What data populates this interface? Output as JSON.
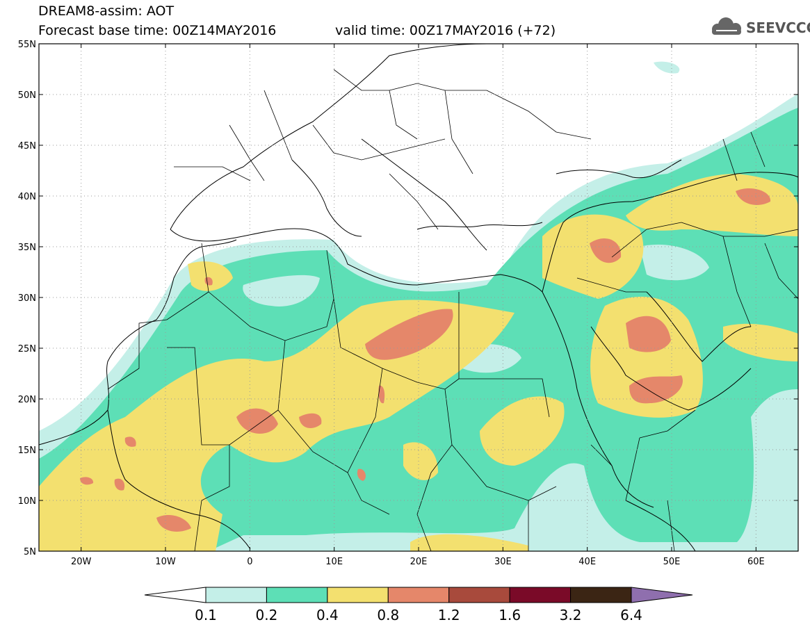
{
  "title": {
    "line1": "DREAM8-assim: AOT",
    "line2": "Forecast base time: 00Z14MAY2016",
    "valid": "valid time: 00Z17MAY2016 (+72)"
  },
  "logo": {
    "text": "SEEVCCC",
    "icon": "cloud-icon"
  },
  "map": {
    "lon_range": [
      -25,
      65
    ],
    "lat_range": [
      5,
      55
    ],
    "lat_ticks": [
      "55N",
      "50N",
      "45N",
      "40N",
      "35N",
      "30N",
      "25N",
      "20N",
      "15N",
      "10N",
      "5N"
    ],
    "lon_ticks": [
      "20W",
      "10W",
      "0",
      "10E",
      "20E",
      "30E",
      "40E",
      "50E",
      "60E"
    ],
    "grid": "dotted",
    "colors": {
      "0.1-0.2": "#c4efe8",
      "0.2-0.4": "#5ddfb6",
      "0.4-0.8": "#f3e06f",
      "0.8-1.2": "#e5876a",
      "1.2-1.6": "#a84a3c",
      "1.6-3.2": "#7a0a28",
      "3.2-6.4": "#3b2514",
      "above-6.4": "#8f6fae"
    }
  },
  "colorbar": {
    "labels": [
      "0.1",
      "0.2",
      "0.4",
      "0.8",
      "1.2",
      "1.6",
      "3.2",
      "6.4"
    ],
    "colors": [
      "#ffffff",
      "#c4efe8",
      "#5ddfb6",
      "#f3e06f",
      "#e5876a",
      "#a84a3c",
      "#7a0a28",
      "#3b2514",
      "#8f6fae"
    ]
  }
}
